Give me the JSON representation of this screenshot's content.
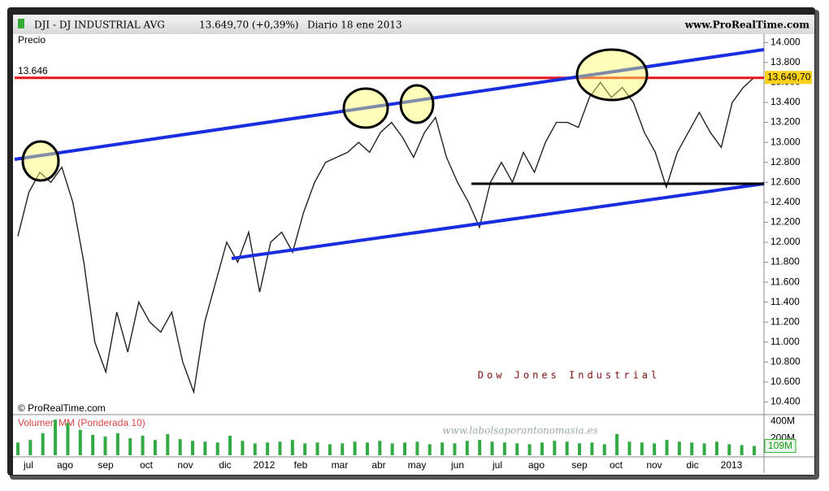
{
  "header": {
    "title": "DJI - DJ INDUSTRIAL AVG",
    "quote": "13.649,70 (+0,39%)",
    "period": "Diario  18 ene 2013",
    "site": "www.ProRealTime.com",
    "copyright": "© ProRealTime.com",
    "watermark": "www.labolsaporantonomasia.es",
    "caption": "Dow Jones Industrial"
  },
  "chart_data": [
    {
      "type": "line",
      "title": "Precio",
      "color": "#222222",
      "values": [
        12060,
        12500,
        12700,
        12600,
        12750,
        12400,
        11800,
        11000,
        10700,
        11300,
        10900,
        11400,
        11200,
        11100,
        11300,
        10800,
        10500,
        11200,
        11600,
        12000,
        11800,
        12100,
        11500,
        12000,
        12100,
        11900,
        12300,
        12600,
        12800,
        12850,
        12900,
        13000,
        12900,
        13100,
        13200,
        13050,
        12850,
        13100,
        13250,
        12850,
        12600,
        12400,
        12150,
        12600,
        12800,
        12600,
        12900,
        12700,
        13000,
        13200,
        13200,
        13150,
        13450,
        13600,
        13450,
        13550,
        13400,
        13100,
        12900,
        12550,
        12900,
        13100,
        13300,
        13100,
        12950,
        13400,
        13550,
        13650
      ],
      "ylim": [
        10290,
        14100
      ],
      "yticks": [
        {
          "value": 10400,
          "label": "10.400"
        },
        {
          "value": 10600,
          "label": "10.600"
        },
        {
          "value": 10800,
          "label": "10.800"
        },
        {
          "value": 11000,
          "label": "11.000"
        },
        {
          "value": 11200,
          "label": "11.200"
        },
        {
          "value": 11400,
          "label": "11.400"
        },
        {
          "value": 11600,
          "label": "11.600"
        },
        {
          "value": 11800,
          "label": "11.800"
        },
        {
          "value": 12000,
          "label": "12.000"
        },
        {
          "value": 12200,
          "label": "12.200"
        },
        {
          "value": 12400,
          "label": "12.400"
        },
        {
          "value": 12600,
          "label": "12.600"
        },
        {
          "value": 12800,
          "label": "12.800"
        },
        {
          "value": 13000,
          "label": "13.000"
        },
        {
          "value": 13200,
          "label": "13.200"
        },
        {
          "value": 13400,
          "label": "13.400"
        },
        {
          "value": 13600,
          "label": "13.600"
        },
        {
          "value": 13800,
          "label": "13.800"
        },
        {
          "value": 14000,
          "label": "14.000"
        }
      ],
      "level": {
        "value": 13646,
        "label": "13.646",
        "color": "#e8161b"
      },
      "last_value": {
        "value": 13649.7,
        "label": "13.649,70"
      },
      "xticks": [
        "jul",
        "ago",
        "sep",
        "oct",
        "nov",
        "dic",
        "2012",
        "feb",
        "mar",
        "abr",
        "may",
        "jun",
        "jul",
        "ago",
        "sep",
        "oct",
        "nov",
        "dic",
        "2013"
      ]
    },
    {
      "type": "bar",
      "title": "Volumen MM (Ponderada 10)",
      "color": "#33aa44",
      "values": [
        150,
        180,
        260,
        420,
        380,
        300,
        240,
        220,
        260,
        200,
        230,
        180,
        250,
        190,
        170,
        160,
        150,
        230,
        170,
        140,
        150,
        160,
        180,
        140,
        150,
        130,
        140,
        160,
        150,
        170,
        140,
        150,
        160,
        130,
        150,
        140,
        170,
        180,
        160,
        150,
        140,
        130,
        150,
        170,
        160,
        140,
        150,
        130,
        250,
        160,
        150,
        140,
        180,
        160,
        150,
        140,
        160,
        130,
        120,
        109
      ],
      "ylim": [
        0,
        460
      ],
      "yticks": [
        {
          "value": 200,
          "label": "200M"
        },
        {
          "value": 400,
          "label": "400M"
        }
      ],
      "last_value": {
        "value": 109,
        "label": "109M"
      }
    }
  ]
}
